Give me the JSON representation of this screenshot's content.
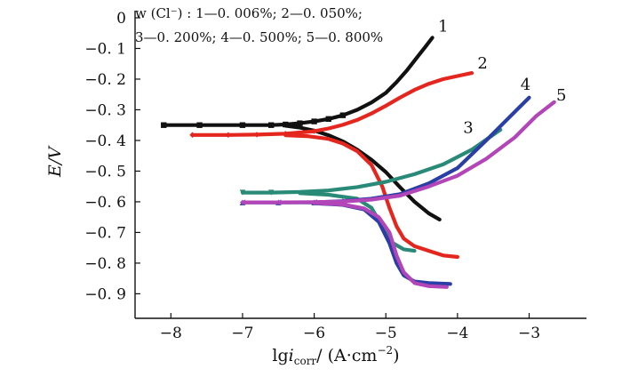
{
  "chart_data": {
    "type": "line",
    "ylabel": "E/V",
    "xlabel_parts": {
      "prefix": "lg",
      "var": "i",
      "sub": "corr",
      "unit": "/ (A·cm",
      "unit_sup": "−2",
      "unit_end": ")"
    },
    "xlim": [
      -8.5,
      -2.2
    ],
    "ylim": [
      -0.98,
      0.0
    ],
    "xticks": [
      -8,
      -7,
      -6,
      -5,
      -4,
      -3
    ],
    "xtick_labels": [
      "−8",
      "−7",
      "−6",
      "−5",
      "−4",
      "−3"
    ],
    "yticks": [
      0,
      -0.1,
      -0.2,
      -0.3,
      -0.4,
      -0.5,
      -0.6,
      -0.7,
      -0.8,
      -0.9
    ],
    "ytick_labels": [
      "0",
      "−0. 1",
      "−0. 2",
      "−0. 3",
      "−0. 4",
      "−0. 5",
      "−0. 6",
      "−0. 7",
      "−0. 8",
      "−0. 9"
    ],
    "legend": {
      "line1": "w (Cl⁻) : 1—0. 006%; 2—0. 050%;",
      "line2": "3—0. 200%; 4—0. 500%; 5—0. 800%"
    },
    "series": [
      {
        "name": "1",
        "color": "#111111",
        "marker": "square",
        "marker_x_max": -5.6,
        "anodic": [
          [
            -8.1,
            -0.35
          ],
          [
            -7.6,
            -0.35
          ],
          [
            -7.0,
            -0.35
          ],
          [
            -6.6,
            -0.35
          ],
          [
            -6.4,
            -0.348
          ],
          [
            -6.2,
            -0.344
          ],
          [
            -6.0,
            -0.338
          ],
          [
            -5.8,
            -0.33
          ],
          [
            -5.6,
            -0.318
          ],
          [
            -5.4,
            -0.3
          ],
          [
            -5.2,
            -0.276
          ],
          [
            -5.0,
            -0.245
          ],
          [
            -4.85,
            -0.21
          ],
          [
            -4.7,
            -0.17
          ],
          [
            -4.55,
            -0.125
          ],
          [
            -4.45,
            -0.095
          ],
          [
            -4.35,
            -0.065
          ]
        ],
        "cathodic": [
          [
            -6.4,
            -0.352
          ],
          [
            -6.2,
            -0.358
          ],
          [
            -6.0,
            -0.368
          ],
          [
            -5.8,
            -0.383
          ],
          [
            -5.6,
            -0.403
          ],
          [
            -5.4,
            -0.43
          ],
          [
            -5.2,
            -0.463
          ],
          [
            -5.0,
            -0.503
          ],
          [
            -4.8,
            -0.553
          ],
          [
            -4.6,
            -0.6
          ],
          [
            -4.4,
            -0.638
          ],
          [
            -4.25,
            -0.658
          ]
        ]
      },
      {
        "name": "2",
        "color": "#e5261f",
        "marker": "diamond",
        "marker_x_max": -6.0,
        "anodic": [
          [
            -7.7,
            -0.382
          ],
          [
            -7.2,
            -0.382
          ],
          [
            -6.8,
            -0.381
          ],
          [
            -6.4,
            -0.378
          ],
          [
            -6.0,
            -0.37
          ],
          [
            -5.8,
            -0.361
          ],
          [
            -5.6,
            -0.349
          ],
          [
            -5.4,
            -0.333
          ],
          [
            -5.2,
            -0.312
          ],
          [
            -5.0,
            -0.287
          ],
          [
            -4.8,
            -0.26
          ],
          [
            -4.6,
            -0.235
          ],
          [
            -4.4,
            -0.215
          ],
          [
            -4.2,
            -0.2
          ],
          [
            -4.0,
            -0.19
          ],
          [
            -3.8,
            -0.18
          ]
        ],
        "cathodic": [
          [
            -6.4,
            -0.383
          ],
          [
            -6.1,
            -0.386
          ],
          [
            -5.8,
            -0.395
          ],
          [
            -5.6,
            -0.41
          ],
          [
            -5.4,
            -0.435
          ],
          [
            -5.2,
            -0.48
          ],
          [
            -5.05,
            -0.55
          ],
          [
            -4.95,
            -0.62
          ],
          [
            -4.85,
            -0.68
          ],
          [
            -4.75,
            -0.72
          ],
          [
            -4.6,
            -0.745
          ],
          [
            -4.4,
            -0.76
          ],
          [
            -4.2,
            -0.775
          ],
          [
            -4.0,
            -0.78
          ]
        ]
      },
      {
        "name": "3",
        "color": "#2a8a78",
        "marker": "triangle-down",
        "marker_x_max": -6.3,
        "anodic": [
          [
            -7.0,
            -0.57
          ],
          [
            -6.6,
            -0.57
          ],
          [
            -6.2,
            -0.568
          ],
          [
            -5.8,
            -0.563
          ],
          [
            -5.4,
            -0.552
          ],
          [
            -5.0,
            -0.535
          ],
          [
            -4.6,
            -0.51
          ],
          [
            -4.2,
            -0.478
          ],
          [
            -3.8,
            -0.43
          ],
          [
            -3.4,
            -0.365
          ]
        ],
        "cathodic": [
          [
            -6.2,
            -0.572
          ],
          [
            -5.8,
            -0.577
          ],
          [
            -5.4,
            -0.59
          ],
          [
            -5.2,
            -0.62
          ],
          [
            -5.05,
            -0.68
          ],
          [
            -4.9,
            -0.735
          ],
          [
            -4.75,
            -0.755
          ],
          [
            -4.6,
            -0.76
          ]
        ]
      },
      {
        "name": "4",
        "color": "#2a3ea6",
        "marker": "triangle-up",
        "marker_x_max": -5.4,
        "anodic": [
          [
            -7.0,
            -0.602
          ],
          [
            -6.5,
            -0.602
          ],
          [
            -6.0,
            -0.602
          ],
          [
            -5.6,
            -0.598
          ],
          [
            -5.2,
            -0.59
          ],
          [
            -4.8,
            -0.575
          ],
          [
            -4.4,
            -0.54
          ],
          [
            -4.0,
            -0.49
          ],
          [
            -3.6,
            -0.4
          ],
          [
            -3.3,
            -0.33
          ],
          [
            -3.0,
            -0.26
          ]
        ],
        "cathodic": [
          [
            -6.0,
            -0.605
          ],
          [
            -5.6,
            -0.61
          ],
          [
            -5.3,
            -0.625
          ],
          [
            -5.1,
            -0.665
          ],
          [
            -4.95,
            -0.735
          ],
          [
            -4.85,
            -0.8
          ],
          [
            -4.75,
            -0.84
          ],
          [
            -4.6,
            -0.86
          ],
          [
            -4.4,
            -0.865
          ],
          [
            -4.1,
            -0.868
          ]
        ]
      },
      {
        "name": "5",
        "color": "#b245b8",
        "marker": "triangle-left",
        "marker_x_max": -5.4,
        "anodic": [
          [
            -7.0,
            -0.602
          ],
          [
            -6.5,
            -0.602
          ],
          [
            -6.0,
            -0.601
          ],
          [
            -5.6,
            -0.599
          ],
          [
            -5.2,
            -0.593
          ],
          [
            -4.8,
            -0.58
          ],
          [
            -4.4,
            -0.55
          ],
          [
            -4.0,
            -0.515
          ],
          [
            -3.6,
            -0.46
          ],
          [
            -3.2,
            -0.39
          ],
          [
            -2.9,
            -0.32
          ],
          [
            -2.65,
            -0.275
          ]
        ],
        "cathodic": [
          [
            -6.0,
            -0.604
          ],
          [
            -5.6,
            -0.609
          ],
          [
            -5.3,
            -0.622
          ],
          [
            -5.1,
            -0.65
          ],
          [
            -4.95,
            -0.7
          ],
          [
            -4.85,
            -0.775
          ],
          [
            -4.75,
            -0.83
          ],
          [
            -4.6,
            -0.865
          ],
          [
            -4.4,
            -0.875
          ],
          [
            -4.15,
            -0.878
          ]
        ]
      }
    ],
    "curve_labels": [
      {
        "text": "1",
        "x": -4.2,
        "y": -0.045
      },
      {
        "text": "2",
        "x": -3.65,
        "y": -0.165
      },
      {
        "text": "3",
        "x": -3.85,
        "y": -0.375
      },
      {
        "text": "4",
        "x": -3.05,
        "y": -0.235
      },
      {
        "text": "5",
        "x": -2.55,
        "y": -0.27
      }
    ]
  }
}
